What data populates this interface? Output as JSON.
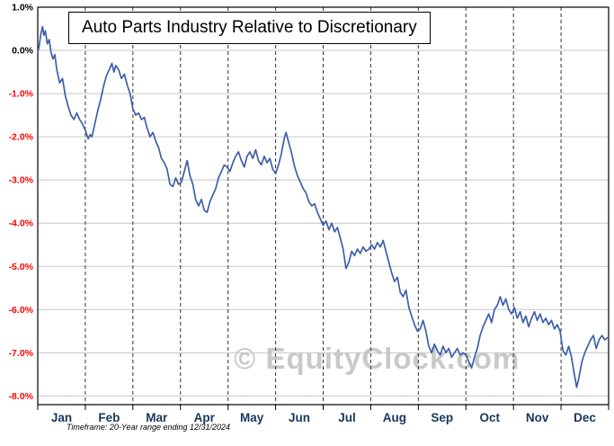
{
  "title": "Auto Parts Industry Relative to Discretionary",
  "watermark": "© EquityClock.com",
  "footnote": "Timeframe: 20-Year range ending 12/31/2024",
  "colors": {
    "line": "#3E5FA8",
    "grid": "#c6c6c6",
    "month_grid": "#333333",
    "border": "#000000",
    "positive_label": "#000000",
    "negative_label": "#ff0000",
    "month_label": "#17375E",
    "watermark": "#c9c9c9"
  },
  "chart_data": {
    "type": "line",
    "title": "Auto Parts Industry Relative to Discretionary",
    "xlabel": "",
    "ylabel": "",
    "grid": true,
    "legend_position": "none",
    "x_max": 12,
    "ylim": [
      -8.2,
      1.0
    ],
    "categories": [
      "Jan",
      "Feb",
      "Mar",
      "Apr",
      "May",
      "Jun",
      "Jul",
      "Aug",
      "Sep",
      "Oct",
      "Nov",
      "Dec"
    ],
    "y_ticks": [
      {
        "label": "1.0%",
        "value": 1.0
      },
      {
        "label": "0.0%",
        "value": 0.0
      },
      {
        "label": "-1.0%",
        "value": -1.0
      },
      {
        "label": "-2.0%",
        "value": -2.0
      },
      {
        "label": "-3.0%",
        "value": -3.0
      },
      {
        "label": "-4.0%",
        "value": -4.0
      },
      {
        "label": "-5.0%",
        "value": -5.0
      },
      {
        "label": "-6.0%",
        "value": -6.0
      },
      {
        "label": "-7.0%",
        "value": -7.0
      },
      {
        "label": "-8.0%",
        "value": -8.0
      }
    ],
    "series": [
      {
        "name": "Auto Parts Industry Relative to Discretionary",
        "points": [
          [
            0,
            -0.05
          ],
          [
            0.03,
            0.1
          ],
          [
            0.06,
            0.35
          ],
          [
            0.1,
            0.55
          ],
          [
            0.13,
            0.35
          ],
          [
            0.16,
            0.45
          ],
          [
            0.2,
            0.15
          ],
          [
            0.24,
            0.25
          ],
          [
            0.28,
            -0.05
          ],
          [
            0.32,
            -0.2
          ],
          [
            0.36,
            -0.1
          ],
          [
            0.4,
            -0.45
          ],
          [
            0.46,
            -0.75
          ],
          [
            0.52,
            -0.65
          ],
          [
            0.58,
            -1.05
          ],
          [
            0.64,
            -1.3
          ],
          [
            0.7,
            -1.5
          ],
          [
            0.76,
            -1.6
          ],
          [
            0.82,
            -1.45
          ],
          [
            0.88,
            -1.6
          ],
          [
            0.94,
            -1.7
          ],
          [
            1,
            -1.85
          ],
          [
            1.06,
            -2.05
          ],
          [
            1.1,
            -1.95
          ],
          [
            1.14,
            -2
          ],
          [
            1.2,
            -1.7
          ],
          [
            1.26,
            -1.4
          ],
          [
            1.32,
            -1.15
          ],
          [
            1.38,
            -0.85
          ],
          [
            1.44,
            -0.6
          ],
          [
            1.5,
            -0.45
          ],
          [
            1.56,
            -0.3
          ],
          [
            1.6,
            -0.5
          ],
          [
            1.64,
            -0.35
          ],
          [
            1.7,
            -0.45
          ],
          [
            1.76,
            -0.65
          ],
          [
            1.82,
            -0.55
          ],
          [
            1.88,
            -0.8
          ],
          [
            1.94,
            -1
          ],
          [
            2,
            -1.35
          ],
          [
            2.06,
            -1.5
          ],
          [
            2.12,
            -1.45
          ],
          [
            2.18,
            -1.6
          ],
          [
            2.24,
            -1.55
          ],
          [
            2.3,
            -1.8
          ],
          [
            2.36,
            -2
          ],
          [
            2.42,
            -1.9
          ],
          [
            2.48,
            -2.1
          ],
          [
            2.54,
            -2.25
          ],
          [
            2.6,
            -2.5
          ],
          [
            2.66,
            -2.6
          ],
          [
            2.72,
            -2.75
          ],
          [
            2.78,
            -3.1
          ],
          [
            2.84,
            -3.15
          ],
          [
            2.9,
            -2.95
          ],
          [
            2.96,
            -3.1
          ],
          [
            3.02,
            -3.05
          ],
          [
            3.08,
            -2.8
          ],
          [
            3.14,
            -2.55
          ],
          [
            3.2,
            -2.9
          ],
          [
            3.26,
            -3.1
          ],
          [
            3.32,
            -3.45
          ],
          [
            3.38,
            -3.6
          ],
          [
            3.44,
            -3.45
          ],
          [
            3.5,
            -3.7
          ],
          [
            3.56,
            -3.75
          ],
          [
            3.62,
            -3.5
          ],
          [
            3.68,
            -3.35
          ],
          [
            3.74,
            -3.2
          ],
          [
            3.8,
            -2.95
          ],
          [
            3.86,
            -2.8
          ],
          [
            3.92,
            -2.65
          ],
          [
            3.98,
            -2.7
          ],
          [
            4.04,
            -2.8
          ],
          [
            4.1,
            -2.6
          ],
          [
            4.16,
            -2.45
          ],
          [
            4.22,
            -2.35
          ],
          [
            4.28,
            -2.55
          ],
          [
            4.34,
            -2.7
          ],
          [
            4.4,
            -2.45
          ],
          [
            4.46,
            -2.35
          ],
          [
            4.52,
            -2.5
          ],
          [
            4.58,
            -2.3
          ],
          [
            4.64,
            -2.55
          ],
          [
            4.7,
            -2.65
          ],
          [
            4.76,
            -2.45
          ],
          [
            4.82,
            -2.6
          ],
          [
            4.88,
            -2.5
          ],
          [
            4.94,
            -2.75
          ],
          [
            5,
            -2.85
          ],
          [
            5.06,
            -2.65
          ],
          [
            5.12,
            -2.4
          ],
          [
            5.18,
            -2.05
          ],
          [
            5.22,
            -1.9
          ],
          [
            5.28,
            -2.15
          ],
          [
            5.34,
            -2.4
          ],
          [
            5.4,
            -2.7
          ],
          [
            5.46,
            -2.9
          ],
          [
            5.52,
            -3.05
          ],
          [
            5.58,
            -3.2
          ],
          [
            5.64,
            -3.3
          ],
          [
            5.7,
            -3.5
          ],
          [
            5.76,
            -3.6
          ],
          [
            5.82,
            -3.55
          ],
          [
            5.88,
            -3.75
          ],
          [
            5.94,
            -3.9
          ],
          [
            6,
            -4.05
          ],
          [
            6.06,
            -3.95
          ],
          [
            6.12,
            -4.15
          ],
          [
            6.18,
            -4
          ],
          [
            6.24,
            -4.2
          ],
          [
            6.3,
            -4.1
          ],
          [
            6.36,
            -4.35
          ],
          [
            6.42,
            -4.6
          ],
          [
            6.48,
            -5.05
          ],
          [
            6.54,
            -4.9
          ],
          [
            6.6,
            -4.65
          ],
          [
            6.66,
            -4.75
          ],
          [
            6.72,
            -4.6
          ],
          [
            6.78,
            -4.7
          ],
          [
            6.84,
            -4.55
          ],
          [
            6.9,
            -4.65
          ],
          [
            6.96,
            -4.6
          ],
          [
            7.02,
            -4.5
          ],
          [
            7.08,
            -4.6
          ],
          [
            7.14,
            -4.45
          ],
          [
            7.2,
            -4.55
          ],
          [
            7.26,
            -4.4
          ],
          [
            7.32,
            -4.65
          ],
          [
            7.38,
            -4.9
          ],
          [
            7.44,
            -5.15
          ],
          [
            7.5,
            -5.35
          ],
          [
            7.56,
            -5.25
          ],
          [
            7.62,
            -5.6
          ],
          [
            7.68,
            -5.7
          ],
          [
            7.74,
            -5.55
          ],
          [
            7.8,
            -5.95
          ],
          [
            7.86,
            -6.15
          ],
          [
            7.92,
            -6.35
          ],
          [
            7.98,
            -6.5
          ],
          [
            8.04,
            -6.45
          ],
          [
            8.1,
            -6.25
          ],
          [
            8.16,
            -6.5
          ],
          [
            8.22,
            -6.85
          ],
          [
            8.28,
            -7
          ],
          [
            8.34,
            -6.8
          ],
          [
            8.4,
            -6.95
          ],
          [
            8.46,
            -7.05
          ],
          [
            8.52,
            -6.85
          ],
          [
            8.58,
            -7
          ],
          [
            8.64,
            -6.9
          ],
          [
            8.7,
            -7.1
          ],
          [
            8.76,
            -7
          ],
          [
            8.82,
            -6.9
          ],
          [
            8.88,
            -7.05
          ],
          [
            8.94,
            -7
          ],
          [
            9,
            -7.05
          ],
          [
            9.06,
            -7.2
          ],
          [
            9.12,
            -7.35
          ],
          [
            9.18,
            -7.1
          ],
          [
            9.24,
            -6.9
          ],
          [
            9.3,
            -6.6
          ],
          [
            9.36,
            -6.4
          ],
          [
            9.42,
            -6.25
          ],
          [
            9.48,
            -6.1
          ],
          [
            9.54,
            -6.3
          ],
          [
            9.6,
            -6
          ],
          [
            9.66,
            -5.9
          ],
          [
            9.72,
            -5.7
          ],
          [
            9.78,
            -5.9
          ],
          [
            9.84,
            -5.75
          ],
          [
            9.9,
            -6
          ],
          [
            9.96,
            -6.1
          ],
          [
            10.02,
            -5.95
          ],
          [
            10.08,
            -6.2
          ],
          [
            10.14,
            -6.05
          ],
          [
            10.2,
            -6.3
          ],
          [
            10.26,
            -6.15
          ],
          [
            10.32,
            -6.4
          ],
          [
            10.38,
            -6.2
          ],
          [
            10.44,
            -6.05
          ],
          [
            10.5,
            -6.25
          ],
          [
            10.56,
            -6.1
          ],
          [
            10.62,
            -6.3
          ],
          [
            10.68,
            -6.2
          ],
          [
            10.74,
            -6.35
          ],
          [
            10.8,
            -6.25
          ],
          [
            10.86,
            -6.45
          ],
          [
            10.92,
            -6.35
          ],
          [
            10.98,
            -6.5
          ],
          [
            11.04,
            -6.95
          ],
          [
            11.1,
            -7.05
          ],
          [
            11.16,
            -6.85
          ],
          [
            11.22,
            -7.1
          ],
          [
            11.28,
            -7.5
          ],
          [
            11.33,
            -7.8
          ],
          [
            11.38,
            -7.55
          ],
          [
            11.44,
            -7.2
          ],
          [
            11.5,
            -7
          ],
          [
            11.56,
            -6.85
          ],
          [
            11.62,
            -6.7
          ],
          [
            11.68,
            -6.6
          ],
          [
            11.74,
            -6.9
          ],
          [
            11.8,
            -6.7
          ],
          [
            11.86,
            -6.6
          ],
          [
            11.92,
            -6.7
          ],
          [
            11.98,
            -6.65
          ],
          [
            12,
            -6.65
          ]
        ]
      }
    ]
  }
}
